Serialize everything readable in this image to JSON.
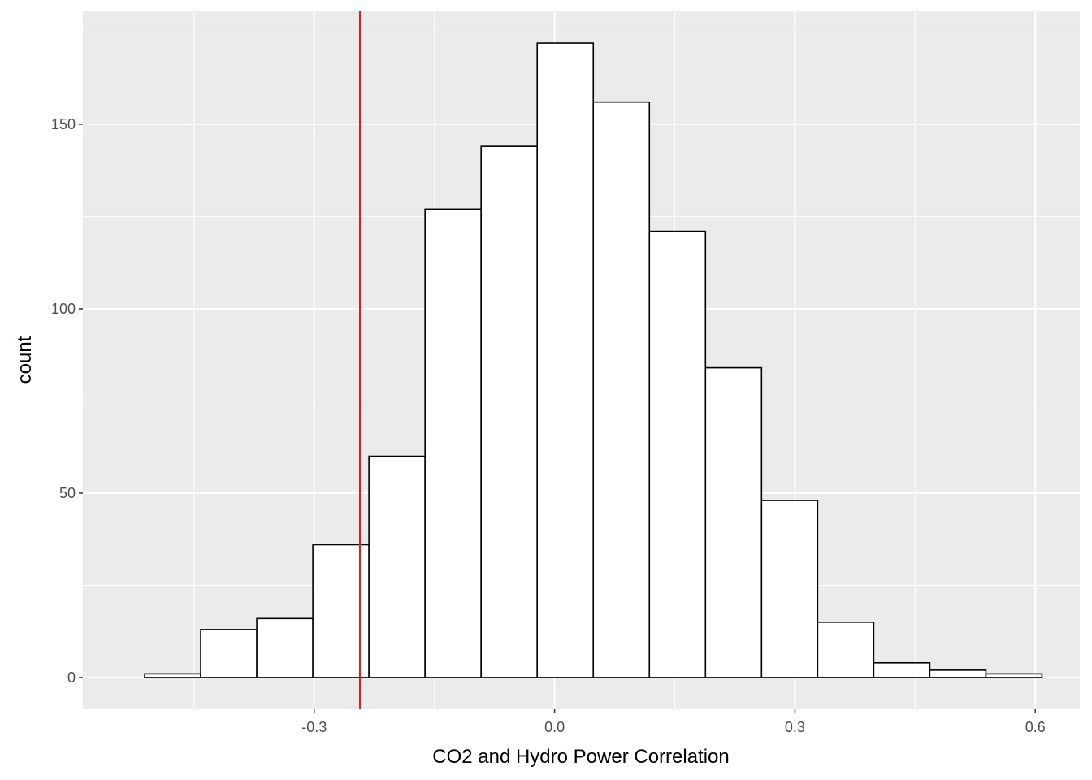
{
  "chart_data": {
    "type": "bar",
    "title": "",
    "xlabel": "CO2 and Hydro Power Correlation",
    "ylabel": "count",
    "bins": [
      {
        "x0": -0.5117,
        "x1": -0.4417,
        "count": 1
      },
      {
        "x0": -0.4417,
        "x1": -0.3717,
        "count": 13
      },
      {
        "x0": -0.3717,
        "x1": -0.3017,
        "count": 16
      },
      {
        "x0": -0.3017,
        "x1": -0.2317,
        "count": 36
      },
      {
        "x0": -0.2317,
        "x1": -0.1617,
        "count": 60
      },
      {
        "x0": -0.1617,
        "x1": -0.0917,
        "count": 127
      },
      {
        "x0": -0.0917,
        "x1": -0.0217,
        "count": 144
      },
      {
        "x0": -0.0217,
        "x1": 0.0483,
        "count": 172
      },
      {
        "x0": 0.0483,
        "x1": 0.1183,
        "count": 156
      },
      {
        "x0": 0.1183,
        "x1": 0.1883,
        "count": 121
      },
      {
        "x0": 0.1883,
        "x1": 0.2583,
        "count": 84
      },
      {
        "x0": 0.2583,
        "x1": 0.3283,
        "count": 48
      },
      {
        "x0": 0.3283,
        "x1": 0.3983,
        "count": 15
      },
      {
        "x0": 0.3983,
        "x1": 0.4683,
        "count": 4
      },
      {
        "x0": 0.4683,
        "x1": 0.5383,
        "count": 2
      },
      {
        "x0": 0.5383,
        "x1": 0.6083,
        "count": 1
      }
    ],
    "xlim": [
      -0.5888,
      0.6555
    ],
    "ylim": [
      -8.6,
      180.6
    ],
    "x_ticks": [
      -0.3,
      0.0,
      0.3,
      0.6
    ],
    "x_tick_labels": [
      "-0.3",
      "0.0",
      "0.3",
      "0.6"
    ],
    "y_ticks": [
      0,
      50,
      100,
      150
    ],
    "y_tick_labels": [
      "0",
      "50",
      "100",
      "150"
    ],
    "vline": {
      "x": -0.243,
      "color": "#e41a1c"
    },
    "grid": true,
    "colors": {
      "panel": "#ebebeb",
      "grid": "#ffffff",
      "bar_fill": "#ffffff",
      "bar_stroke": "#000000"
    }
  }
}
